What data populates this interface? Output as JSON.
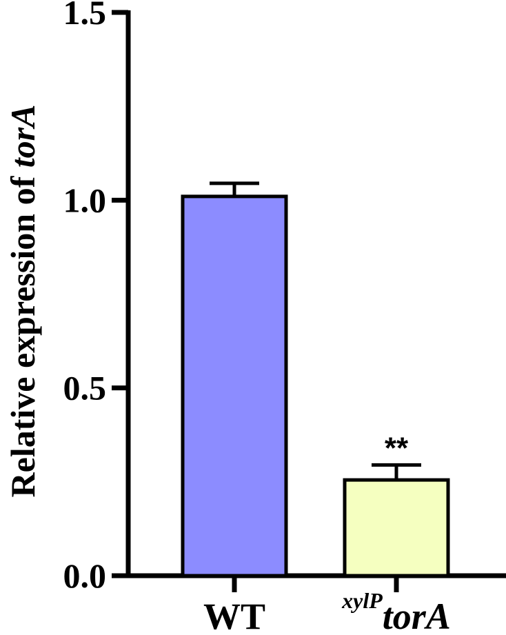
{
  "chart_data": {
    "type": "bar",
    "categories": [
      {
        "prefix": "",
        "sup": "",
        "main": "WT",
        "main_italic": false
      },
      {
        "prefix": "",
        "sup": "xylP",
        "main": "torA",
        "main_italic": true
      }
    ],
    "values": [
      1.01,
      0.255
    ],
    "errors": [
      0.035,
      0.04
    ],
    "annotations": [
      "",
      "**"
    ],
    "colors": [
      "#8c8cff",
      "#f5ffc0"
    ],
    "ylabel_parts": [
      {
        "text": "Relative expression of ",
        "italic": false
      },
      {
        "text": "torA",
        "italic": true
      }
    ],
    "yticks": [
      "0.0",
      "0.5",
      "1.0",
      "1.5"
    ],
    "ytick_values": [
      0.0,
      0.5,
      1.0,
      1.5
    ],
    "ylim": [
      0,
      1.5
    ],
    "grid": false
  }
}
